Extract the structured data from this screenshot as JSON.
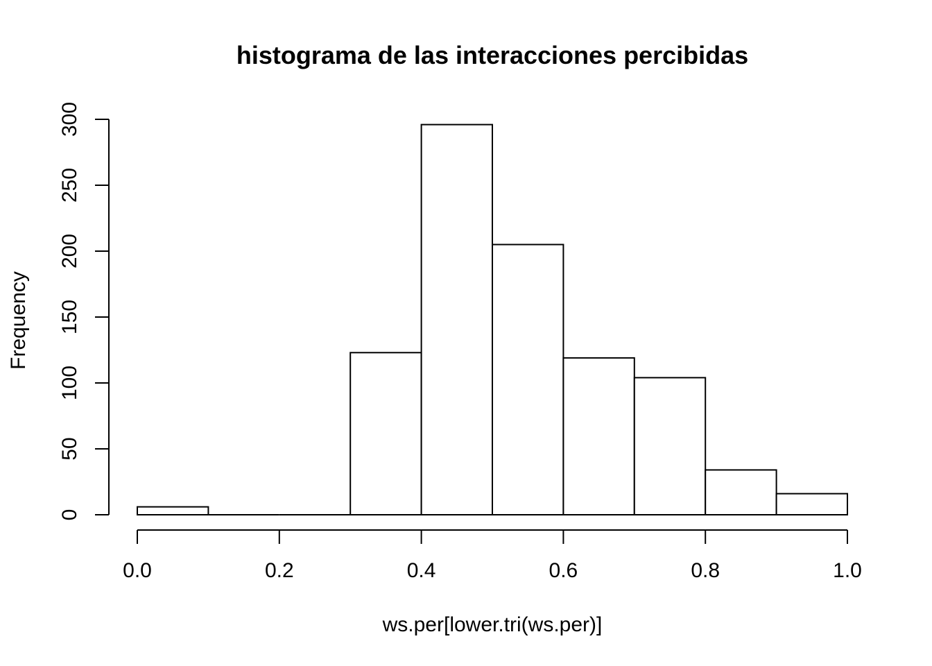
{
  "chart_data": {
    "type": "bar",
    "title": "histograma de las interacciones percibidas",
    "xlabel": "ws.per[lower.tri(ws.per)]",
    "ylabel": "Frequency",
    "bins": [
      {
        "x0": 0.0,
        "x1": 0.1,
        "count": 6
      },
      {
        "x0": 0.1,
        "x1": 0.2,
        "count": 0
      },
      {
        "x0": 0.2,
        "x1": 0.3,
        "count": 0
      },
      {
        "x0": 0.3,
        "x1": 0.4,
        "count": 123
      },
      {
        "x0": 0.4,
        "x1": 0.5,
        "count": 296
      },
      {
        "x0": 0.5,
        "x1": 0.6,
        "count": 205
      },
      {
        "x0": 0.6,
        "x1": 0.7,
        "count": 119
      },
      {
        "x0": 0.7,
        "x1": 0.8,
        "count": 104
      },
      {
        "x0": 0.8,
        "x1": 0.9,
        "count": 34
      },
      {
        "x0": 0.9,
        "x1": 1.0,
        "count": 16
      }
    ],
    "xlim": [
      0.0,
      1.0
    ],
    "ylim": [
      0,
      300
    ],
    "x_ticks": [
      "0.0",
      "0.2",
      "0.4",
      "0.6",
      "0.8",
      "1.0"
    ],
    "y_ticks": [
      "0",
      "50",
      "100",
      "150",
      "200",
      "250",
      "300"
    ],
    "grid": false,
    "bar_fill": "#ffffff",
    "bar_stroke": "#000000"
  }
}
